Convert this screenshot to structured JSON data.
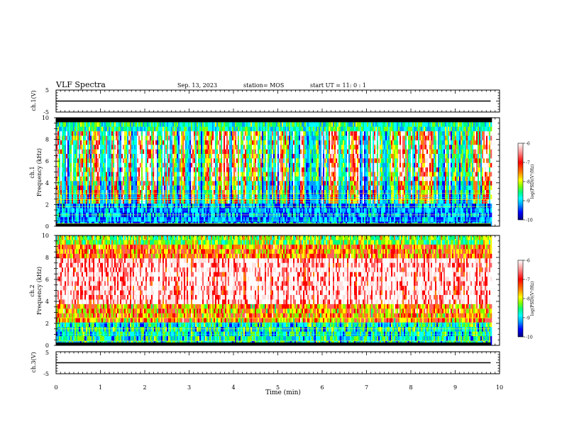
{
  "header": {
    "title": "VLF Spectra",
    "date": "Sep. 13, 2023",
    "station": "station= MOS",
    "start": "start  UT =   11: 0  : 1"
  },
  "colors": {
    "scale": [
      "#000000",
      "#00007f",
      "#0000ff",
      "#00a0ff",
      "#00ffff",
      "#00ff80",
      "#80ff00",
      "#ffff00",
      "#ff8000",
      "#ff0000",
      "#ff6060",
      "#ffe0e0",
      "#ffffff"
    ],
    "trace": "#000000"
  },
  "chart_data": [
    {
      "type": "line",
      "panel": "ch1-waveform",
      "ylabel": "ch.1(V)",
      "yticks": [
        "5",
        "-5"
      ],
      "ylim": [
        -5,
        5
      ],
      "xlim": [
        0,
        10
      ],
      "data_extent_min": 9.8,
      "series": [
        {
          "x": [
            0,
            9.8
          ],
          "values": [
            0,
            0
          ]
        }
      ]
    },
    {
      "type": "heatmap",
      "panel": "ch1-spectrogram",
      "ylabel": "ch.1\nFrequency (kHz)",
      "yticks": [
        "0",
        "2",
        "4",
        "6",
        "8",
        "10"
      ],
      "ylim": [
        0,
        10
      ],
      "xlim": [
        0,
        10
      ],
      "data_extent_min": 9.8,
      "colorbar": {
        "label": "log(PSD)(V²/Hz)",
        "ticks": [
          "-6",
          "-7",
          "-8",
          "-9",
          "-10"
        ],
        "range": [
          -10,
          -6
        ]
      },
      "line_freqs_khz": [
        0.25,
        0.55,
        1.05,
        1.5,
        1.8,
        2.25,
        2.45,
        2.65,
        3.05
      ]
    },
    {
      "type": "heatmap",
      "panel": "ch2-spectrogram",
      "ylabel": "ch.2\nFrequency (kHz)",
      "yticks": [
        "0",
        "2",
        "4",
        "6",
        "8",
        "10"
      ],
      "ylim": [
        0,
        10
      ],
      "xlim": [
        0,
        10
      ],
      "data_extent_min": 9.8,
      "colorbar": {
        "label": "log(PSD)(V²/Hz)",
        "ticks": [
          "-6",
          "-7",
          "-8",
          "-9",
          "-10"
        ],
        "range": [
          -10,
          -6
        ]
      },
      "line_freqs_khz": [
        0.4,
        1.0,
        1.5,
        2.0,
        2.5
      ]
    },
    {
      "type": "line",
      "panel": "ch3-waveform",
      "ylabel": "ch.3(V)",
      "yticks": [
        "5",
        "-5"
      ],
      "ylim": [
        -5,
        5
      ],
      "xlim": [
        0,
        10
      ],
      "data_extent_min": 9.8,
      "series": [
        {
          "x": [
            0,
            9.8
          ],
          "values": [
            0,
            0
          ]
        }
      ]
    }
  ],
  "xaxis": {
    "label": "Time (min)",
    "ticks": [
      "0",
      "1",
      "2",
      "3",
      "4",
      "5",
      "6",
      "7",
      "8",
      "9",
      "10"
    ]
  }
}
